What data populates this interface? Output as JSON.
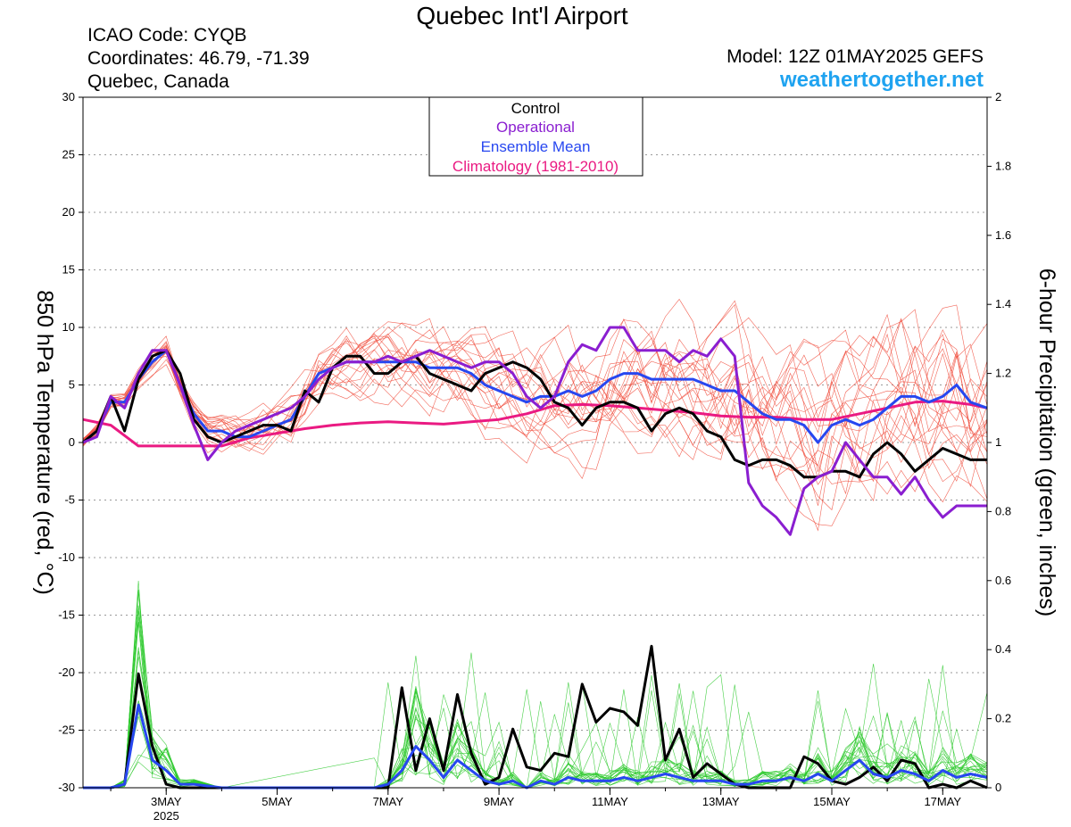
{
  "header": {
    "title": "Quebec Int'l Airport",
    "icao": "ICAO Code: CYQB",
    "coords": "Coordinates: 46.79, -71.39",
    "location": "Quebec, Canada",
    "model": "Model: 12Z 01MAY2025 GEFS",
    "site": "weathertogether.net"
  },
  "legend": {
    "control": "Control",
    "operational": "Operational",
    "mean": "Ensemble Mean",
    "climo": "Climatology (1981-2010)"
  },
  "colors": {
    "control": "#000000",
    "operational": "#8a1ed0",
    "mean": "#2747f0",
    "climo": "#ea1a82",
    "members_temp": "#f04a3a",
    "members_precip": "#28c828",
    "site": "#1fa3f0"
  },
  "chart_data": {
    "type": "line",
    "title": "Quebec Int'l Airport",
    "ylabel": "850 hPa Temperature (red, °C)",
    "y2label": "6-hour Precipitation (green, inches)",
    "x_unit": "days since 1MAY 12Z",
    "xlim": [
      0.5,
      16.8
    ],
    "ylim": [
      -30,
      30
    ],
    "y2lim": [
      0,
      2
    ],
    "x_tick_labels": [
      {
        "x": 2,
        "label": "3MAY",
        "sub": "2025"
      },
      {
        "x": 4,
        "label": "5MAY"
      },
      {
        "x": 6,
        "label": "7MAY"
      },
      {
        "x": 8,
        "label": "9MAY"
      },
      {
        "x": 10,
        "label": "11MAY"
      },
      {
        "x": 12,
        "label": "13MAY"
      },
      {
        "x": 14,
        "label": "15MAY"
      },
      {
        "x": 16,
        "label": "17MAY"
      }
    ],
    "y_ticks": [
      -30,
      -25,
      -20,
      -15,
      -10,
      -5,
      0,
      5,
      10,
      15,
      20,
      25,
      30
    ],
    "y2_ticks": [
      "0",
      "0.2",
      "0.4",
      "0.6",
      "0.8",
      "1",
      "1.2",
      "1.4",
      "1.6",
      "1.8",
      "2"
    ],
    "grid": "horizontal dotted",
    "legend_position": "top-center",
    "temperature_series": [
      {
        "name": "Control",
        "x": [
          0.5,
          0.75,
          1,
          1.25,
          1.5,
          1.75,
          2,
          2.25,
          2.5,
          2.75,
          3,
          3.25,
          3.5,
          3.75,
          4,
          4.25,
          4.5,
          4.75,
          5,
          5.25,
          5.5,
          5.75,
          6,
          6.25,
          6.5,
          6.75,
          7,
          7.25,
          7.5,
          7.75,
          8,
          8.25,
          8.5,
          8.75,
          9,
          9.25,
          9.5,
          9.75,
          10,
          10.25,
          10.5,
          10.75,
          11,
          11.25,
          11.5,
          11.75,
          12,
          12.25,
          12.5,
          12.75,
          13,
          13.25,
          13.5,
          13.75,
          14,
          14.25,
          14.5,
          14.75,
          15,
          15.25,
          15.5,
          15.75,
          16,
          16.25,
          16.5,
          16.8
        ],
        "y": [
          0,
          1,
          4,
          1,
          5.5,
          7.5,
          8,
          6,
          2,
          0.5,
          0,
          0.5,
          1,
          1.5,
          1.5,
          1,
          4.5,
          3.5,
          6.5,
          7.5,
          7.5,
          6,
          6,
          7,
          7.5,
          6,
          5.5,
          5,
          4.5,
          6,
          6.5,
          7,
          6.5,
          5.5,
          3.5,
          3,
          1.5,
          3,
          3.5,
          3.5,
          3,
          1,
          2.5,
          3,
          2.5,
          1,
          0.5,
          -1.5,
          -2,
          -1.5,
          -1.5,
          -2,
          -3,
          -3,
          -2.5,
          -2.5,
          -3,
          -1,
          0,
          -1,
          -2.5,
          -1.5,
          -0.5,
          -1,
          -1.5,
          -1.5
        ]
      },
      {
        "name": "Operational",
        "x": [
          0.5,
          0.75,
          1,
          1.25,
          1.5,
          1.75,
          2,
          2.25,
          2.5,
          2.75,
          3,
          3.25,
          3.5,
          3.75,
          4,
          4.25,
          4.5,
          4.75,
          5,
          5.25,
          5.5,
          5.75,
          6,
          6.25,
          6.5,
          6.75,
          7,
          7.25,
          7.5,
          7.75,
          8,
          8.25,
          8.5,
          8.75,
          9,
          9.25,
          9.5,
          9.75,
          10,
          10.25,
          10.5,
          10.75,
          11,
          11.25,
          11.5,
          11.75,
          12,
          12.25,
          12.5,
          12.75,
          13,
          13.25,
          13.5,
          13.75,
          14,
          14.25,
          14.5,
          14.75,
          15,
          15.25,
          15.5,
          15.75,
          16,
          16.25,
          16.5,
          16.8
        ],
        "y": [
          0,
          0.5,
          4,
          3,
          6,
          8,
          8,
          5,
          1.5,
          -1.5,
          0,
          1,
          1.5,
          2,
          2.5,
          3,
          4,
          5.5,
          6.5,
          7,
          7,
          7,
          7.5,
          7,
          7.5,
          8,
          7.5,
          7,
          6.5,
          7,
          7,
          6,
          4,
          3,
          4,
          7,
          8.5,
          8,
          10,
          10,
          8,
          8,
          8,
          7,
          8,
          7.5,
          9,
          7.5,
          -3.5,
          -5.5,
          -6.5,
          -8,
          -4,
          -3,
          -2.5,
          0,
          -1.5,
          -3,
          -3,
          -4.5,
          -3,
          -5,
          -6.5,
          -5.5,
          -5.5,
          -5.5
        ]
      },
      {
        "name": "Ensemble Mean",
        "x": [
          0.5,
          0.75,
          1,
          1.25,
          1.5,
          1.75,
          2,
          2.25,
          2.5,
          2.75,
          3,
          3.25,
          3.5,
          3.75,
          4,
          4.25,
          4.5,
          4.75,
          5,
          5.25,
          5.5,
          5.75,
          6,
          6.25,
          6.5,
          6.75,
          7,
          7.25,
          7.5,
          7.75,
          8,
          8.25,
          8.5,
          8.75,
          9,
          9.25,
          9.5,
          9.75,
          10,
          10.25,
          10.5,
          10.75,
          11,
          11.25,
          11.5,
          11.75,
          12,
          12.25,
          12.5,
          12.75,
          13,
          13.25,
          13.5,
          13.75,
          14,
          14.25,
          14.5,
          14.75,
          15,
          15.25,
          15.5,
          15.75,
          16,
          16.25,
          16.5,
          16.8
        ],
        "y": [
          0,
          1,
          3.5,
          3.5,
          5.5,
          7,
          8,
          5,
          2.5,
          1,
          1,
          0.5,
          0.5,
          1,
          1.5,
          2,
          4,
          6,
          6.5,
          7,
          7,
          7,
          7,
          7,
          7,
          6.5,
          6.5,
          6.5,
          6,
          5,
          4.5,
          4,
          3.5,
          4,
          4,
          4.5,
          4,
          4.5,
          5.5,
          6,
          6,
          5.5,
          5.5,
          5.5,
          5.5,
          5,
          4.5,
          4.5,
          3.5,
          2.5,
          2,
          2,
          1.5,
          0,
          1.5,
          2,
          1.5,
          2,
          3,
          4,
          4,
          3.5,
          4,
          5,
          3.5,
          3
        ]
      },
      {
        "name": "Climatology (1981-2010)",
        "x": [
          0.5,
          1,
          1.5,
          2,
          2.5,
          3,
          3.5,
          4,
          4.5,
          5,
          5.5,
          6,
          6.5,
          7,
          7.5,
          8,
          8.5,
          9,
          9.5,
          10,
          10.5,
          11,
          11.5,
          12,
          12.5,
          13,
          13.5,
          14,
          14.5,
          15,
          15.5,
          16,
          16.5,
          16.8
        ],
        "y": [
          2,
          1.5,
          -0.3,
          -0.3,
          -0.3,
          -0.3,
          0.4,
          0.8,
          1.2,
          1.5,
          1.7,
          1.8,
          1.7,
          1.6,
          1.8,
          2,
          2.5,
          3.2,
          3.3,
          3.2,
          3.0,
          2.8,
          2.6,
          2.3,
          2.2,
          2.2,
          2.0,
          2.0,
          2.5,
          3.0,
          3.5,
          3.6,
          3.3,
          3.0
        ]
      }
    ],
    "precip_series": [
      {
        "name": "Control",
        "x": [
          0.5,
          1,
          1.25,
          1.5,
          1.75,
          2,
          2.25,
          2.5,
          3,
          5.75,
          6,
          6.25,
          6.5,
          6.75,
          7,
          7.25,
          7.5,
          7.75,
          8,
          8.25,
          8.5,
          8.75,
          9,
          9.25,
          9.5,
          9.75,
          10,
          10.25,
          10.5,
          10.75,
          11,
          11.25,
          11.5,
          11.75,
          12,
          12.25,
          12.5,
          12.75,
          13,
          13.25,
          13.5,
          13.75,
          14,
          14.25,
          14.5,
          14.75,
          15,
          15.25,
          15.5,
          15.75,
          16,
          16.25,
          16.5,
          16.8
        ],
        "y": [
          0,
          0,
          0.01,
          0.33,
          0.12,
          0.01,
          0.0,
          0.0,
          0.0,
          0.0,
          0.0,
          0.29,
          0.05,
          0.2,
          0.05,
          0.27,
          0.1,
          0.01,
          0.03,
          0.17,
          0.06,
          0.05,
          0.1,
          0.09,
          0.3,
          0.19,
          0.23,
          0.22,
          0.18,
          0.41,
          0.08,
          0.17,
          0.03,
          0.07,
          0.04,
          0.01,
          0.0,
          0.0,
          0.0,
          0.0,
          0.09,
          0.07,
          0.02,
          0.01,
          0.03,
          0.06,
          0.02,
          0.08,
          0.07,
          0.0,
          0.01,
          0.0,
          0.02,
          0.0
        ]
      },
      {
        "name": "Ensemble Mean",
        "x": [
          0.5,
          1,
          1.25,
          1.5,
          1.75,
          2,
          2.25,
          2.5,
          3,
          5.75,
          6,
          6.25,
          6.5,
          6.75,
          7,
          7.25,
          7.5,
          7.75,
          8,
          8.25,
          8.5,
          8.75,
          9,
          9.25,
          9.5,
          9.75,
          10,
          10.25,
          10.5,
          10.75,
          11,
          11.25,
          11.5,
          11.75,
          12,
          12.25,
          12.5,
          12.75,
          13,
          13.25,
          13.5,
          13.75,
          14,
          14.25,
          14.5,
          14.75,
          15,
          15.25,
          15.5,
          15.75,
          16,
          16.25,
          16.5,
          16.8
        ],
        "y": [
          0,
          0,
          0.01,
          0.24,
          0.08,
          0.05,
          0.01,
          0.01,
          0.0,
          0.0,
          0.01,
          0.05,
          0.12,
          0.08,
          0.03,
          0.08,
          0.05,
          0.02,
          0.01,
          0.02,
          0.0,
          0.02,
          0.01,
          0.03,
          0.02,
          0.02,
          0.02,
          0.03,
          0.02,
          0.03,
          0.04,
          0.03,
          0.02,
          0.02,
          0.02,
          0.01,
          0.01,
          0.02,
          0.02,
          0.03,
          0.02,
          0.04,
          0.02,
          0.05,
          0.08,
          0.04,
          0.03,
          0.05,
          0.04,
          0.02,
          0.05,
          0.03,
          0.04,
          0.03
        ]
      }
    ]
  }
}
